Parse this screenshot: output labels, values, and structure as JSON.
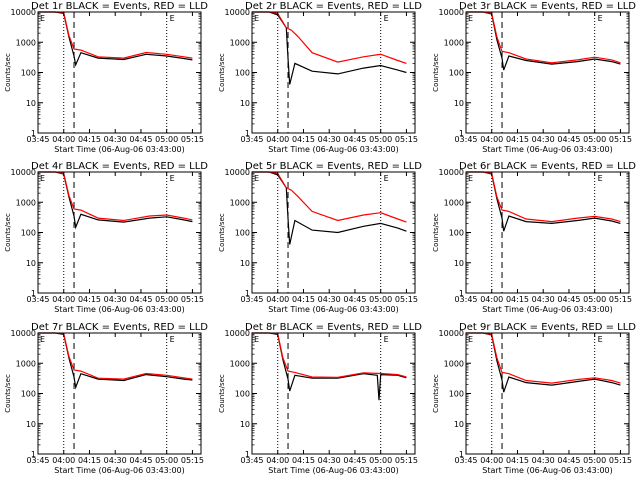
{
  "colors": {
    "events": "#000000",
    "lld": "#ff0000",
    "background": "#ffffff"
  },
  "chart_data": [
    {
      "type": "line",
      "title": "Det 1r BLACK = Events, RED = LLD",
      "xlabel": "Start Time (06-Aug-06 03:43:00)",
      "ylabel": "Counts/sec",
      "xlim": [
        "03:45",
        "05:20"
      ],
      "ylim": [
        1,
        10000
      ],
      "yscale": "log",
      "x_ticks": [
        "03:45",
        "04:00",
        "04:15",
        "04:30",
        "04:45",
        "05:00",
        "05:15"
      ],
      "y_ticks": [
        "1",
        "10",
        "100",
        "1000",
        "10000"
      ],
      "grid": false,
      "legend": "none",
      "annotation": "E",
      "series": [
        {
          "name": "Events",
          "color": "#000000",
          "x": [
            "03:45",
            "03:55",
            "04:00",
            "04:03",
            "04:06",
            "04:07",
            "04:10",
            "04:20",
            "04:35",
            "04:48",
            "05:00",
            "05:10",
            "05:15"
          ],
          "y": [
            10000,
            10000,
            9000,
            1500,
            350,
            180,
            450,
            300,
            270,
            400,
            350,
            290,
            260
          ]
        },
        {
          "name": "LLD",
          "color": "#ff0000",
          "x": [
            "03:45",
            "03:55",
            "04:00",
            "04:03",
            "04:06",
            "04:10",
            "04:20",
            "04:35",
            "04:48",
            "05:00",
            "05:10",
            "05:15"
          ],
          "y": [
            10000,
            10000,
            9500,
            1700,
            600,
            550,
            330,
            300,
            460,
            400,
            330,
            300
          ]
        }
      ],
      "vlines": [
        {
          "x": "04:00",
          "style": "dotted"
        },
        {
          "x": "04:06",
          "style": "dashed"
        },
        {
          "x": "05:00",
          "style": "dotted"
        }
      ]
    },
    {
      "type": "line",
      "title": "Det 2r BLACK = Events, RED = LLD",
      "xlabel": "Start Time (06-Aug-06 03:43:00)",
      "ylabel": "Counts/sec",
      "xlim": [
        "03:45",
        "05:20"
      ],
      "ylim": [
        1,
        10000
      ],
      "yscale": "log",
      "x_ticks": [
        "03:45",
        "04:00",
        "04:15",
        "04:30",
        "04:45",
        "05:00",
        "05:15"
      ],
      "y_ticks": [
        "1",
        "10",
        "100",
        "1000",
        "10000"
      ],
      "grid": false,
      "legend": "none",
      "annotation": "E",
      "series": [
        {
          "name": "Events",
          "color": "#000000",
          "x": [
            "03:45",
            "03:55",
            "04:00",
            "04:05",
            "04:06",
            "04:07",
            "04:10",
            "04:20",
            "04:35",
            "04:50",
            "05:00",
            "05:10",
            "05:15"
          ],
          "y": [
            10000,
            10000,
            8000,
            3000,
            300,
            40,
            200,
            110,
            90,
            140,
            170,
            120,
            100
          ]
        },
        {
          "name": "LLD",
          "color": "#ff0000",
          "x": [
            "03:45",
            "03:55",
            "04:00",
            "04:05",
            "04:08",
            "04:12",
            "04:20",
            "04:35",
            "04:50",
            "05:00",
            "05:10",
            "05:15"
          ],
          "y": [
            10000,
            10000,
            9000,
            3000,
            2500,
            1500,
            450,
            220,
            330,
            400,
            250,
            200
          ]
        }
      ],
      "vlines": [
        {
          "x": "04:00",
          "style": "dotted"
        },
        {
          "x": "04:06",
          "style": "dashed"
        },
        {
          "x": "05:00",
          "style": "dotted"
        }
      ]
    },
    {
      "type": "line",
      "title": "Det 3r BLACK = Events, RED = LLD",
      "xlabel": "Start Time (06-Aug-06 03:43:00)",
      "ylabel": "Counts/sec",
      "xlim": [
        "03:45",
        "05:20"
      ],
      "ylim": [
        1,
        10000
      ],
      "yscale": "log",
      "x_ticks": [
        "03:45",
        "04:00",
        "04:15",
        "04:30",
        "04:45",
        "05:00",
        "05:15"
      ],
      "y_ticks": [
        "1",
        "10",
        "100",
        "1000",
        "10000"
      ],
      "grid": false,
      "legend": "none",
      "annotation": "E",
      "series": [
        {
          "name": "Events",
          "color": "#000000",
          "x": [
            "03:45",
            "03:55",
            "04:00",
            "04:03",
            "04:06",
            "04:07",
            "04:10",
            "04:20",
            "04:35",
            "04:50",
            "05:00",
            "05:10",
            "05:15"
          ],
          "y": [
            10000,
            10000,
            8500,
            1200,
            300,
            120,
            350,
            250,
            190,
            230,
            280,
            230,
            190
          ]
        },
        {
          "name": "LLD",
          "color": "#ff0000",
          "x": [
            "03:45",
            "03:55",
            "04:00",
            "04:03",
            "04:06",
            "04:10",
            "04:20",
            "04:35",
            "04:50",
            "05:00",
            "05:10",
            "05:15"
          ],
          "y": [
            10000,
            10000,
            9000,
            1500,
            500,
            450,
            280,
            210,
            260,
            320,
            260,
            210
          ]
        }
      ],
      "vlines": [
        {
          "x": "04:00",
          "style": "dotted"
        },
        {
          "x": "04:06",
          "style": "dashed"
        },
        {
          "x": "05:00",
          "style": "dotted"
        }
      ]
    },
    {
      "type": "line",
      "title": "Det 4r BLACK = Events, RED = LLD",
      "xlabel": "Start Time (06-Aug-06 03:43:00)",
      "ylabel": "Counts/sec",
      "xlim": [
        "03:45",
        "05:20"
      ],
      "ylim": [
        1,
        10000
      ],
      "yscale": "log",
      "x_ticks": [
        "03:45",
        "04:00",
        "04:15",
        "04:30",
        "04:45",
        "05:00",
        "05:15"
      ],
      "y_ticks": [
        "1",
        "10",
        "100",
        "1000",
        "10000"
      ],
      "grid": false,
      "legend": "none",
      "annotation": "E",
      "series": [
        {
          "name": "Events",
          "color": "#000000",
          "x": [
            "03:45",
            "03:55",
            "04:00",
            "04:03",
            "04:06",
            "04:07",
            "04:10",
            "04:20",
            "04:35",
            "04:50",
            "05:00",
            "05:10",
            "05:15"
          ],
          "y": [
            10000,
            10000,
            8500,
            1500,
            350,
            150,
            400,
            260,
            220,
            300,
            330,
            260,
            230
          ]
        },
        {
          "name": "LLD",
          "color": "#ff0000",
          "x": [
            "03:45",
            "03:55",
            "04:00",
            "04:03",
            "04:06",
            "04:10",
            "04:20",
            "04:35",
            "04:50",
            "05:00",
            "05:10",
            "05:15"
          ],
          "y": [
            10000,
            10000,
            9000,
            1700,
            600,
            550,
            300,
            250,
            350,
            380,
            300,
            260
          ]
        }
      ],
      "vlines": [
        {
          "x": "04:00",
          "style": "dotted"
        },
        {
          "x": "04:06",
          "style": "dashed"
        },
        {
          "x": "05:00",
          "style": "dotted"
        }
      ]
    },
    {
      "type": "line",
      "title": "Det 5r BLACK = Events, RED = LLD",
      "xlabel": "Start Time (06-Aug-06 03:43:00)",
      "ylabel": "Counts/sec",
      "xlim": [
        "03:45",
        "05:20"
      ],
      "ylim": [
        1,
        10000
      ],
      "yscale": "log",
      "x_ticks": [
        "03:45",
        "04:00",
        "04:15",
        "04:30",
        "04:45",
        "05:00",
        "05:15"
      ],
      "y_ticks": [
        "1",
        "10",
        "100",
        "1000",
        "10000"
      ],
      "grid": false,
      "legend": "none",
      "annotation": "E",
      "series": [
        {
          "name": "Events",
          "color": "#000000",
          "x": [
            "03:45",
            "03:55",
            "04:00",
            "04:05",
            "04:06",
            "04:07",
            "04:10",
            "04:20",
            "04:35",
            "04:50",
            "05:00",
            "05:10",
            "05:15"
          ],
          "y": [
            10000,
            10000,
            8000,
            3000,
            300,
            40,
            250,
            120,
            100,
            160,
            200,
            140,
            110
          ]
        },
        {
          "name": "LLD",
          "color": "#ff0000",
          "x": [
            "03:45",
            "03:55",
            "04:00",
            "04:05",
            "04:08",
            "04:12",
            "04:20",
            "04:35",
            "04:50",
            "05:00",
            "05:10",
            "05:15"
          ],
          "y": [
            10000,
            10000,
            9000,
            3000,
            2500,
            1500,
            500,
            250,
            380,
            450,
            280,
            220
          ]
        }
      ],
      "vlines": [
        {
          "x": "04:00",
          "style": "dotted"
        },
        {
          "x": "04:06",
          "style": "dashed"
        },
        {
          "x": "05:00",
          "style": "dotted"
        }
      ]
    },
    {
      "type": "line",
      "title": "Det 6r BLACK = Events, RED = LLD",
      "xlabel": "Start Time (06-Aug-06 03:43:00)",
      "ylabel": "Counts/sec",
      "xlim": [
        "03:45",
        "05:20"
      ],
      "ylim": [
        1,
        10000
      ],
      "yscale": "log",
      "x_ticks": [
        "03:45",
        "04:00",
        "04:15",
        "04:30",
        "04:45",
        "05:00",
        "05:15"
      ],
      "y_ticks": [
        "1",
        "10",
        "100",
        "1000",
        "10000"
      ],
      "grid": false,
      "legend": "none",
      "annotation": "E",
      "series": [
        {
          "name": "Events",
          "color": "#000000",
          "x": [
            "03:45",
            "03:55",
            "04:00",
            "04:03",
            "04:06",
            "04:07",
            "04:10",
            "04:20",
            "04:35",
            "04:50",
            "05:00",
            "05:10",
            "05:15"
          ],
          "y": [
            10000,
            10000,
            8500,
            1300,
            300,
            110,
            350,
            230,
            200,
            250,
            300,
            240,
            200
          ]
        },
        {
          "name": "LLD",
          "color": "#ff0000",
          "x": [
            "03:45",
            "03:55",
            "04:00",
            "04:03",
            "04:06",
            "04:10",
            "04:20",
            "04:35",
            "04:50",
            "05:00",
            "05:10",
            "05:15"
          ],
          "y": [
            10000,
            10000,
            9000,
            1500,
            550,
            500,
            280,
            230,
            300,
            340,
            280,
            230
          ]
        }
      ],
      "vlines": [
        {
          "x": "04:00",
          "style": "dotted"
        },
        {
          "x": "04:06",
          "style": "dashed"
        },
        {
          "x": "05:00",
          "style": "dotted"
        }
      ]
    },
    {
      "type": "line",
      "title": "Det 7r BLACK = Events, RED = LLD",
      "xlabel": "Start Time (06-Aug-06 03:43:00)",
      "ylabel": "Counts/sec",
      "xlim": [
        "03:45",
        "05:20"
      ],
      "ylim": [
        1,
        10000
      ],
      "yscale": "log",
      "x_ticks": [
        "03:45",
        "04:00",
        "04:15",
        "04:30",
        "04:45",
        "05:00",
        "05:15"
      ],
      "y_ticks": [
        "1",
        "10",
        "100",
        "1000",
        "10000"
      ],
      "grid": false,
      "legend": "none",
      "annotation": "E",
      "series": [
        {
          "name": "Events",
          "color": "#000000",
          "x": [
            "03:45",
            "03:55",
            "04:00",
            "04:03",
            "04:06",
            "04:07",
            "04:10",
            "04:20",
            "04:35",
            "04:48",
            "05:00",
            "05:10",
            "05:15"
          ],
          "y": [
            10000,
            10000,
            9000,
            1500,
            350,
            160,
            450,
            300,
            270,
            420,
            360,
            300,
            280
          ]
        },
        {
          "name": "LLD",
          "color": "#ff0000",
          "x": [
            "03:45",
            "03:55",
            "04:00",
            "04:03",
            "04:06",
            "04:10",
            "04:20",
            "04:35",
            "04:48",
            "05:00",
            "05:10",
            "05:15"
          ],
          "y": [
            10000,
            10000,
            9500,
            1700,
            600,
            550,
            320,
            300,
            460,
            400,
            330,
            300
          ]
        }
      ],
      "vlines": [
        {
          "x": "04:00",
          "style": "dotted"
        },
        {
          "x": "04:06",
          "style": "dashed"
        },
        {
          "x": "05:00",
          "style": "dotted"
        }
      ]
    },
    {
      "type": "line",
      "title": "Det 8r BLACK = Events, RED = LLD",
      "xlabel": "Start Time (06-Aug-06 03:43:00)",
      "ylabel": "Counts/sec",
      "xlim": [
        "03:45",
        "05:20"
      ],
      "ylim": [
        1,
        10000
      ],
      "yscale": "log",
      "x_ticks": [
        "03:45",
        "04:00",
        "04:15",
        "04:30",
        "04:45",
        "05:00",
        "05:15"
      ],
      "y_ticks": [
        "1",
        "10",
        "100",
        "1000",
        "10000"
      ],
      "grid": false,
      "legend": "none",
      "annotation": "E",
      "series": [
        {
          "name": "Events",
          "color": "#000000",
          "x": [
            "03:45",
            "03:55",
            "04:00",
            "04:03",
            "04:06",
            "04:07",
            "04:10",
            "04:20",
            "04:35",
            "04:50",
            "04:58",
            "04:59",
            "05:00",
            "05:10",
            "05:15"
          ],
          "y": [
            10000,
            10000,
            9000,
            1300,
            300,
            120,
            400,
            320,
            320,
            450,
            400,
            60,
            420,
            400,
            330
          ]
        },
        {
          "name": "LLD",
          "color": "#ff0000",
          "x": [
            "03:45",
            "03:55",
            "04:00",
            "04:03",
            "04:06",
            "04:10",
            "04:20",
            "04:35",
            "04:50",
            "05:00",
            "05:10",
            "05:15"
          ],
          "y": [
            10000,
            10000,
            9500,
            1500,
            550,
            500,
            350,
            340,
            480,
            460,
            420,
            350
          ]
        }
      ],
      "vlines": [
        {
          "x": "04:00",
          "style": "dotted"
        },
        {
          "x": "04:06",
          "style": "dashed"
        },
        {
          "x": "05:00",
          "style": "dotted"
        }
      ]
    },
    {
      "type": "line",
      "title": "Det 9r BLACK = Events, RED = LLD",
      "xlabel": "Start Time (06-Aug-06 03:43:00)",
      "ylabel": "Counts/sec",
      "xlim": [
        "03:45",
        "05:20"
      ],
      "ylim": [
        1,
        10000
      ],
      "yscale": "log",
      "x_ticks": [
        "03:45",
        "04:00",
        "04:15",
        "04:30",
        "04:45",
        "05:00",
        "05:15"
      ],
      "y_ticks": [
        "1",
        "10",
        "100",
        "1000",
        "10000"
      ],
      "grid": false,
      "legend": "none",
      "annotation": "E",
      "series": [
        {
          "name": "Events",
          "color": "#000000",
          "x": [
            "03:45",
            "03:55",
            "04:00",
            "04:03",
            "04:06",
            "04:07",
            "04:10",
            "04:20",
            "04:35",
            "04:50",
            "05:00",
            "05:10",
            "05:15"
          ],
          "y": [
            10000,
            10000,
            8500,
            1200,
            280,
            110,
            350,
            230,
            190,
            250,
            300,
            230,
            190
          ]
        },
        {
          "name": "LLD",
          "color": "#ff0000",
          "x": [
            "03:45",
            "03:55",
            "04:00",
            "04:03",
            "04:06",
            "04:10",
            "04:20",
            "04:35",
            "04:50",
            "05:00",
            "05:10",
            "05:15"
          ],
          "y": [
            10000,
            10000,
            9000,
            1500,
            500,
            450,
            270,
            220,
            290,
            330,
            270,
            220
          ]
        }
      ],
      "vlines": [
        {
          "x": "04:00",
          "style": "dotted"
        },
        {
          "x": "04:06",
          "style": "dashed"
        },
        {
          "x": "05:00",
          "style": "dotted"
        }
      ]
    }
  ]
}
